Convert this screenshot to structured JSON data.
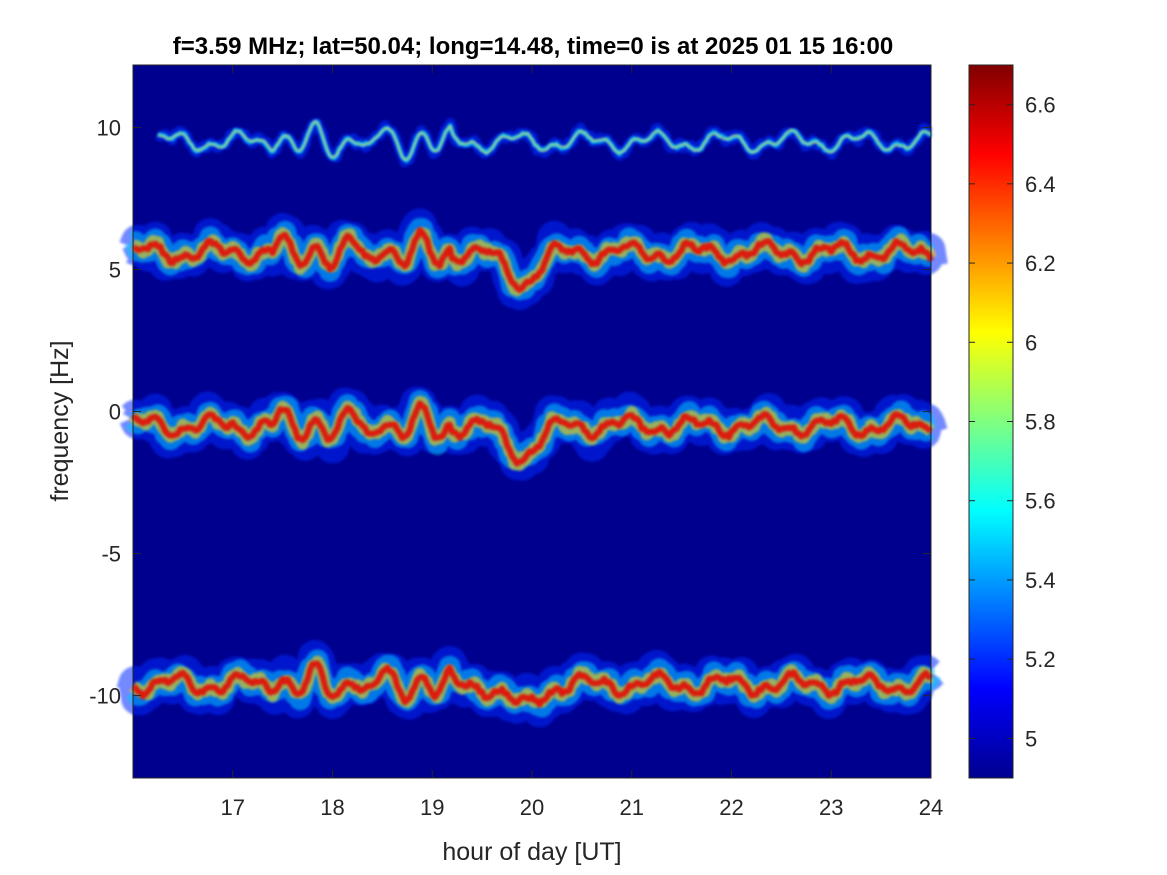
{
  "chart_data": {
    "type": "heatmap",
    "title": "f=3.59 MHz;  lat=50.04; long=14.48, time=0 is at 2025 01 15 16:00",
    "xlabel": "hour of day [UT]",
    "ylabel": "frequency [Hz]",
    "xlim": [
      16,
      24
    ],
    "ylim": [
      -12.9,
      12.2
    ],
    "x_ticks": [
      17,
      18,
      19,
      20,
      21,
      22,
      23,
      24
    ],
    "y_ticks": [
      10,
      5,
      0,
      -5,
      -10
    ],
    "colorbar": {
      "colormap": "jet",
      "range": [
        4.9,
        6.7
      ],
      "ticks": [
        6.6,
        6.4,
        6.2,
        6,
        5.8,
        5.6,
        5.4,
        5.2,
        5
      ]
    },
    "background_color": "#00008f",
    "bands": [
      {
        "center_frequency": 9.5,
        "intensity": "weak",
        "hour_span": [
          16.25,
          24
        ]
      },
      {
        "center_frequency": 5.6,
        "intensity": "strong",
        "hour_span": [
          16,
          24
        ],
        "dip_at_hour": 19.9,
        "dip_frequency": 4.6
      },
      {
        "center_frequency": -0.5,
        "intensity": "strong",
        "hour_span": [
          16,
          24
        ],
        "dip_at_hour": 19.9,
        "dip_frequency": -1.5
      },
      {
        "center_frequency": -9.6,
        "intensity": "strong",
        "hour_span": [
          16,
          24
        ],
        "dip_at_hour": 19.9,
        "dip_frequency": -10.4
      }
    ]
  }
}
